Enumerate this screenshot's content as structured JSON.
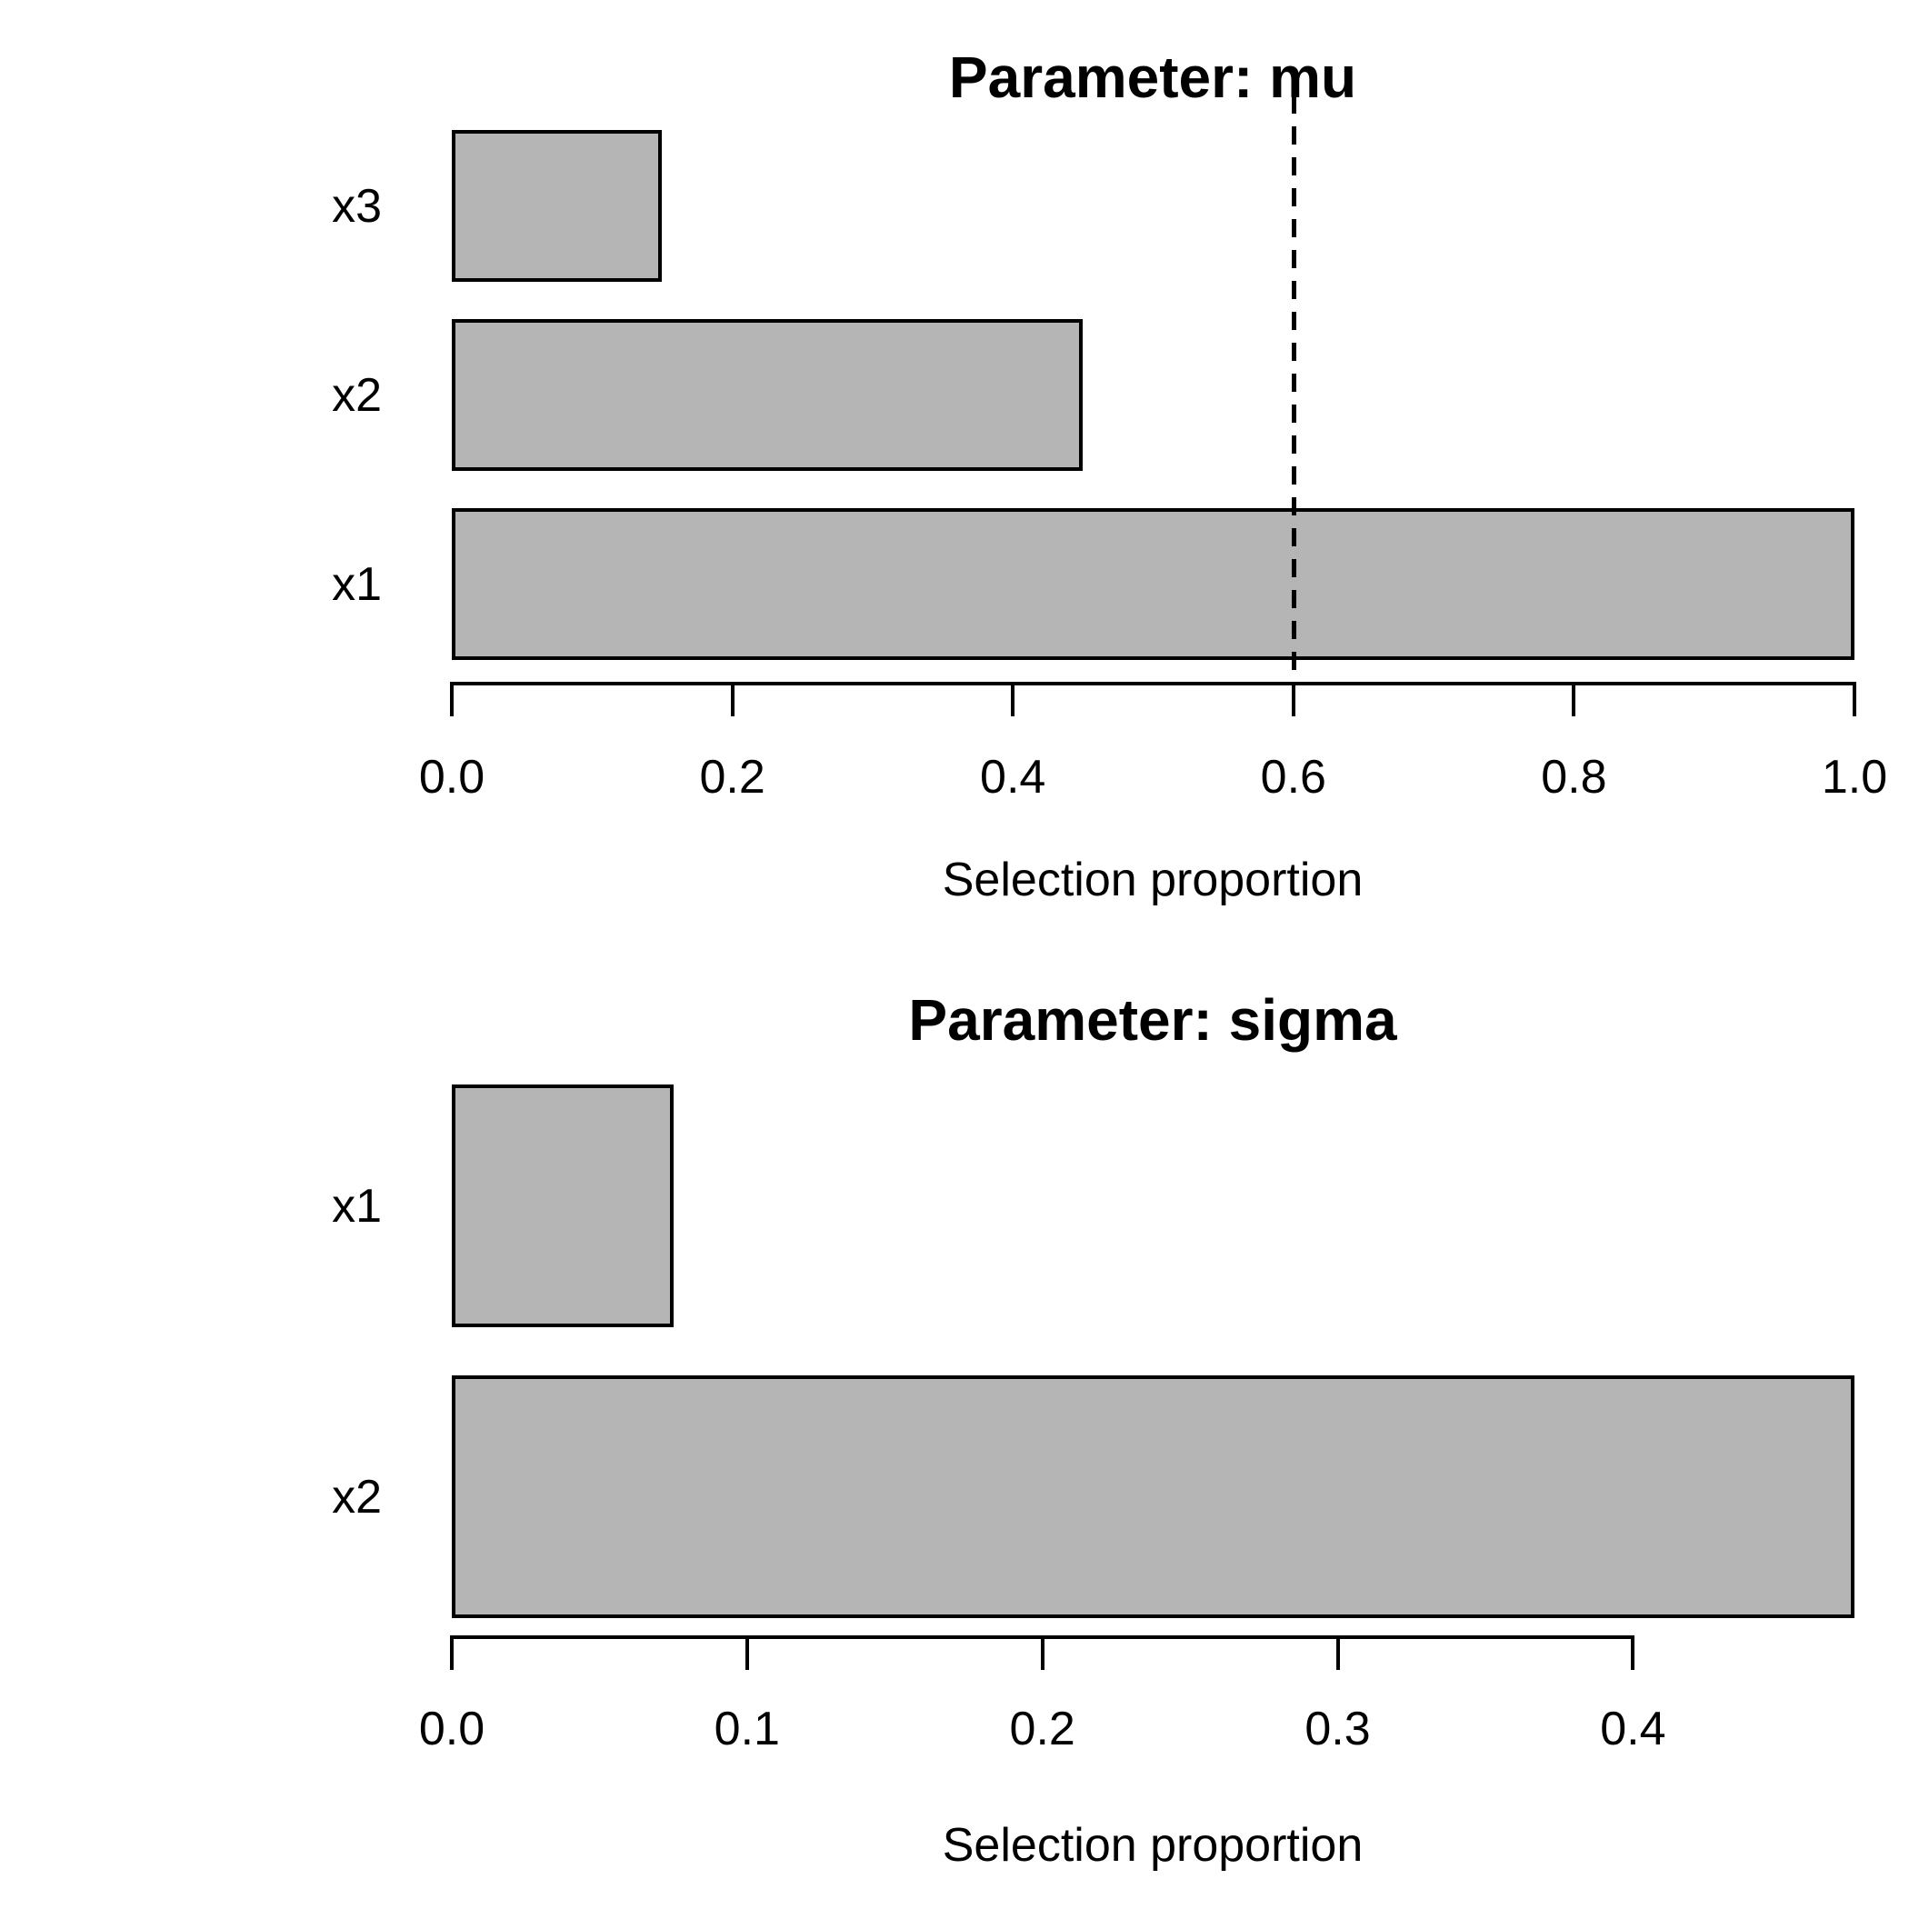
{
  "figure": {
    "background": "#ffffff"
  },
  "chart_data": [
    {
      "type": "bar",
      "orientation": "horizontal",
      "title": "Parameter: mu",
      "xlabel": "Selection proportion",
      "categories": [
        "x3",
        "x2",
        "x1"
      ],
      "values": [
        0.15,
        0.45,
        1.0
      ],
      "xlim": [
        0,
        1.0
      ],
      "xticks": [
        "0.0",
        "0.2",
        "0.4",
        "0.6",
        "0.8",
        "1.0"
      ],
      "xtick_values": [
        0,
        0.2,
        0.4,
        0.6,
        0.8,
        1.0
      ],
      "axis_line_end": 1.0,
      "threshold": 0.6,
      "threshold_style": "dashed",
      "bar_fill": "#b5b5b5",
      "bar_border": "#000000",
      "grid": false,
      "legend": null
    },
    {
      "type": "bar",
      "orientation": "horizontal",
      "title": "Parameter: sigma",
      "xlabel": "Selection proportion",
      "categories": [
        "x1",
        "x2"
      ],
      "values": [
        0.075,
        0.475
      ],
      "xlim": [
        0,
        0.475
      ],
      "xticks": [
        "0.0",
        "0.1",
        "0.2",
        "0.3",
        "0.4"
      ],
      "xtick_values": [
        0,
        0.1,
        0.2,
        0.3,
        0.4
      ],
      "axis_line_end": 0.4,
      "threshold": null,
      "threshold_style": null,
      "bar_fill": "#b5b5b5",
      "bar_border": "#000000",
      "grid": false,
      "legend": null
    }
  ]
}
